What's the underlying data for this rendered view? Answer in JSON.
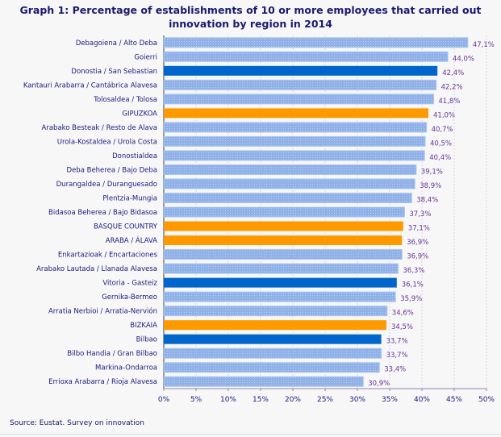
{
  "chart_data": {
    "type": "bar",
    "orientation": "horizontal",
    "title": "Graph 1: Percentage of establishments of 10 or more employees that carried out innovation by region in 2014",
    "categories": [
      "Debagoiena / Alto Deba",
      "Goierri",
      "Donostia / San Sebastian",
      "Kantauri Arabarra / Cantábrica Alavesa",
      "Tolosaldea / Tolosa",
      "GIPUZKOA",
      "Arabako Besteak / Resto de Alava",
      "Urola-Kostaldea / Urola Costa",
      "Donostialdea",
      "Deba Beherea / Bajo Deba",
      "Durangaldea / Duranguesado",
      "Plentzia-Mungia",
      "Bidasoa Beherea / Bajo Bidasoa",
      "BASQUE COUNTRY",
      "ARABA / ÁLAVA",
      "Enkartazioak / Encartaciones",
      "Arabako Lautada / Llanada Alavesa",
      "Vitoria - Gasteiz",
      "Gernika-Bermeo",
      "Arratia Nerbioi / Arratia-Nervión",
      "BIZKAIA",
      "Bilbao",
      "Bilbo Handia / Gran Bilbao",
      "Markina-Ondarroa",
      "Errioxa Arabarra / Rioja Alavesa"
    ],
    "values": [
      47.1,
      44.0,
      42.4,
      42.2,
      41.8,
      41.0,
      40.7,
      40.5,
      40.4,
      39.1,
      38.9,
      38.4,
      37.3,
      37.1,
      36.9,
      36.9,
      36.3,
      36.1,
      35.9,
      34.6,
      34.5,
      33.7,
      33.7,
      33.4,
      30.9
    ],
    "value_labels": [
      "47,1%",
      "44,0%",
      "42,4%",
      "42,2%",
      "41,8%",
      "41,0%",
      "40,7%",
      "40,5%",
      "40,4%",
      "39,1%",
      "38,9%",
      "38,4%",
      "37,3%",
      "37,1%",
      "36,9%",
      "36,9%",
      "36,3%",
      "36,1%",
      "35,9%",
      "34,6%",
      "34,5%",
      "33,7%",
      "33,7%",
      "33,4%",
      "30,9%"
    ],
    "bar_kind": [
      "region",
      "region",
      "capital",
      "region",
      "region",
      "province",
      "region",
      "region",
      "region",
      "region",
      "region",
      "region",
      "region",
      "total",
      "province",
      "region",
      "region",
      "capital",
      "region",
      "region",
      "province",
      "capital",
      "region",
      "region",
      "region"
    ],
    "xlim": [
      0,
      50
    ],
    "xticks": [
      0,
      5,
      10,
      15,
      20,
      25,
      30,
      35,
      40,
      45,
      50
    ],
    "xtick_labels": [
      "0%",
      "5%",
      "10%",
      "15%",
      "20%",
      "25%",
      "30%",
      "35%",
      "40%",
      "45%",
      "50%"
    ],
    "grid": "vertical dashed",
    "colors": {
      "region": "#99bbee",
      "capital": "#0066cc",
      "province": "#ff9900",
      "total": "#ff9900",
      "label": "#1a1a80",
      "value": "#663399"
    }
  },
  "source": "Source: Eustat. Survey on innovation"
}
